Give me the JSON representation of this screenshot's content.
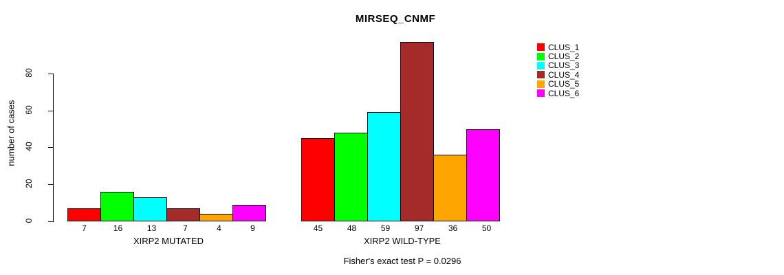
{
  "chart_data": {
    "type": "bar",
    "title": "MIRSEQ_CNMF",
    "ylabel": "number of cases",
    "xlabel": "",
    "footer": "Fisher's exact test P = 0.0296",
    "ylim": [
      0,
      80
    ],
    "yticks": [
      0,
      20,
      40,
      60,
      80
    ],
    "grid": false,
    "legend_position": "top-right",
    "legend": [
      {
        "label": "CLUS_1",
        "color": "#FF0000"
      },
      {
        "label": "CLUS_2",
        "color": "#00FF00"
      },
      {
        "label": "CLUS_3",
        "color": "#00FFFF"
      },
      {
        "label": "CLUS_4",
        "color": "#A52A2A"
      },
      {
        "label": "CLUS_5",
        "color": "#FFA500"
      },
      {
        "label": "CLUS_6",
        "color": "#FF00FF"
      }
    ],
    "groups": [
      {
        "label": "XIRP2 MUTATED",
        "values": [
          7,
          16,
          13,
          7,
          4,
          9
        ]
      },
      {
        "label": "XIRP2 WILD-TYPE",
        "values": [
          45,
          48,
          59,
          97,
          36,
          50
        ]
      }
    ]
  }
}
